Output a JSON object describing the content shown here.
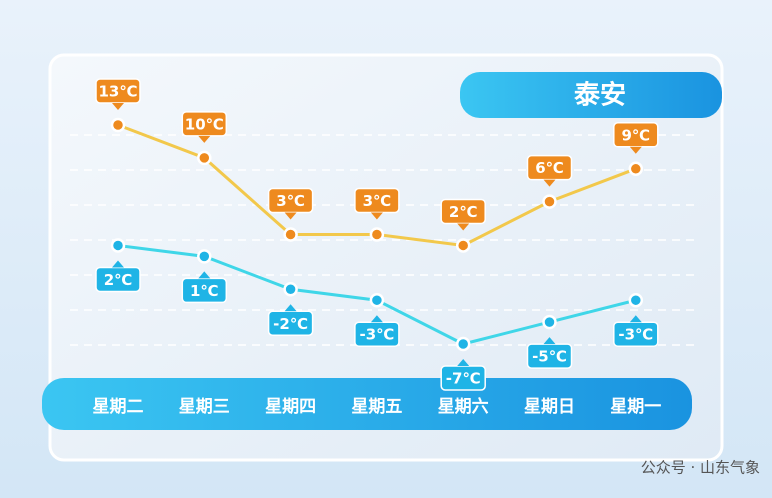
{
  "chart_data": {
    "type": "line",
    "title": "泰安",
    "categories": [
      "星期二",
      "星期三",
      "星期四",
      "星期五",
      "星期六",
      "星期日",
      "星期一"
    ],
    "series": [
      {
        "color": "#f2c84b",
        "label_color": "#ee8a1e",
        "values": [
          13,
          10,
          3,
          3,
          2,
          6,
          9
        ],
        "value_labels": [
          "13℃",
          "10℃",
          "3℃",
          "3℃",
          "2℃",
          "6℃",
          "9℃"
        ]
      },
      {
        "color": "#3fd6e8",
        "label_color": "#1fb4e6",
        "values": [
          2,
          1,
          -2,
          -3,
          -7,
          -5,
          -3
        ],
        "value_labels": [
          "2℃",
          "1℃",
          "-2℃",
          "-3℃",
          "-7℃",
          "-5℃",
          "-3℃"
        ]
      }
    ]
  },
  "footer": {
    "watermark": "公众号 · 山东气象"
  }
}
